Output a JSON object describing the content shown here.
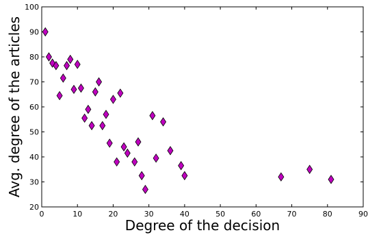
{
  "chart_data": {
    "type": "scatter",
    "title": "",
    "xlabel": "Degree of the decision",
    "ylabel": "Avg. degree of the articles",
    "xlim": [
      0,
      90
    ],
    "ylim": [
      20,
      100
    ],
    "xticks": [
      0,
      10,
      20,
      30,
      40,
      50,
      60,
      70,
      80,
      90
    ],
    "yticks": [
      20,
      30,
      40,
      50,
      60,
      70,
      80,
      90,
      100
    ],
    "grid": false,
    "marker": "diamond",
    "marker_color": "#bf00bf",
    "marker_edge_color": "#000000",
    "points": [
      {
        "x": 1,
        "y": 90
      },
      {
        "x": 2,
        "y": 80
      },
      {
        "x": 3,
        "y": 77.5
      },
      {
        "x": 4,
        "y": 76.5
      },
      {
        "x": 5,
        "y": 64.5
      },
      {
        "x": 6,
        "y": 71.5
      },
      {
        "x": 7,
        "y": 76.5
      },
      {
        "x": 8,
        "y": 79
      },
      {
        "x": 9,
        "y": 67
      },
      {
        "x": 10,
        "y": 77
      },
      {
        "x": 11,
        "y": 67.5
      },
      {
        "x": 12,
        "y": 55.5
      },
      {
        "x": 13,
        "y": 59
      },
      {
        "x": 14,
        "y": 52.5
      },
      {
        "x": 15,
        "y": 66
      },
      {
        "x": 16,
        "y": 70
      },
      {
        "x": 17,
        "y": 52.5
      },
      {
        "x": 18,
        "y": 57
      },
      {
        "x": 19,
        "y": 45.5
      },
      {
        "x": 20,
        "y": 63
      },
      {
        "x": 21,
        "y": 38
      },
      {
        "x": 22,
        "y": 65.5
      },
      {
        "x": 23,
        "y": 44
      },
      {
        "x": 24,
        "y": 41.5
      },
      {
        "x": 26,
        "y": 38
      },
      {
        "x": 27,
        "y": 46
      },
      {
        "x": 28,
        "y": 32.5
      },
      {
        "x": 29,
        "y": 27
      },
      {
        "x": 31,
        "y": 56.5
      },
      {
        "x": 32,
        "y": 39.5
      },
      {
        "x": 34,
        "y": 54
      },
      {
        "x": 36,
        "y": 42.5
      },
      {
        "x": 39,
        "y": 36.5
      },
      {
        "x": 40,
        "y": 32.5
      },
      {
        "x": 67,
        "y": 32
      },
      {
        "x": 75,
        "y": 35
      },
      {
        "x": 81,
        "y": 31
      }
    ]
  }
}
